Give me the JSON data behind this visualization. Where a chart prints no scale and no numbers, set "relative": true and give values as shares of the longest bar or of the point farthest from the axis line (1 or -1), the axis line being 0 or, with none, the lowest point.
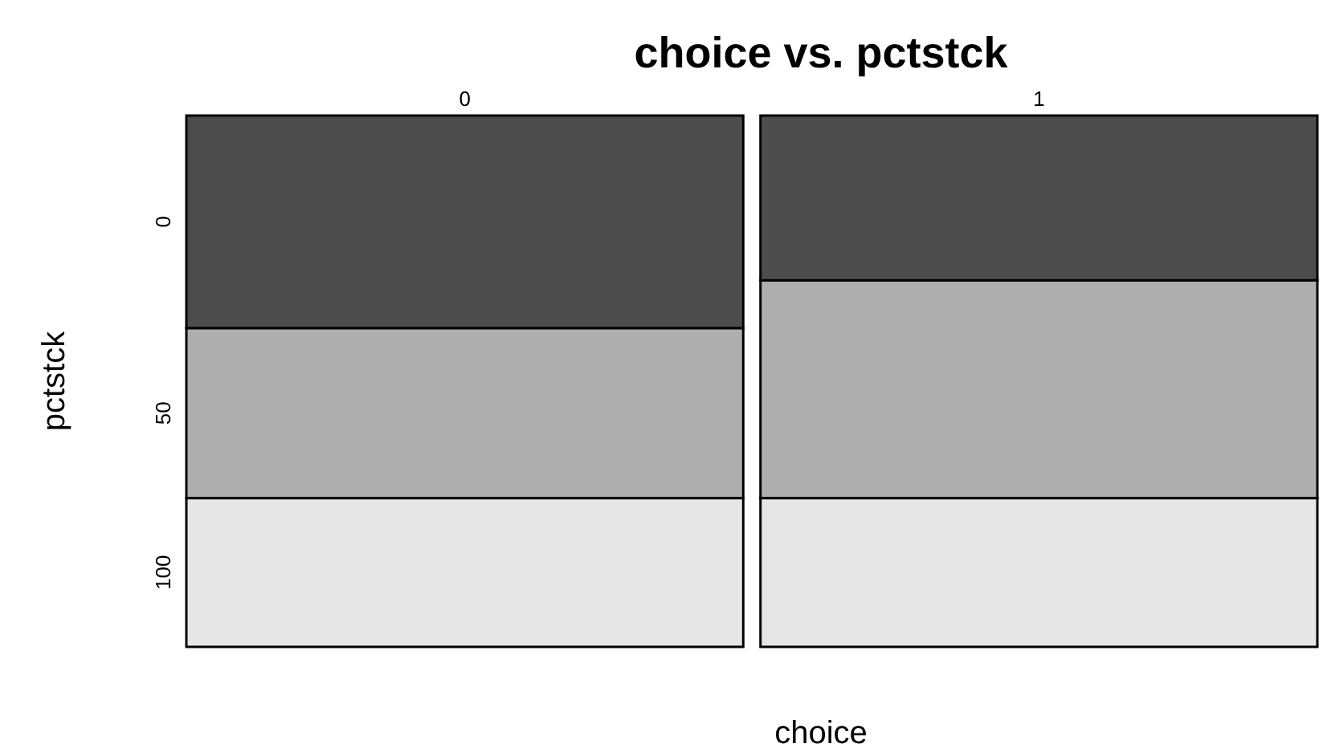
{
  "chart_data": {
    "type": "bar",
    "title": "choice vs. pctstck",
    "xlabel": "choice",
    "ylabel": "pctstck",
    "categories": [
      "0",
      "1"
    ],
    "stacked": true,
    "relative": true,
    "legend": false,
    "series": [
      {
        "name": "100",
        "color": "#e6e6e6",
        "values": [
          0.28,
          0.28
        ]
      },
      {
        "name": "50",
        "color": "#aeaeae",
        "values": [
          0.32,
          0.41
        ]
      },
      {
        "name": "0",
        "color": "#4d4d4d",
        "values": [
          0.4,
          0.31
        ]
      }
    ]
  }
}
